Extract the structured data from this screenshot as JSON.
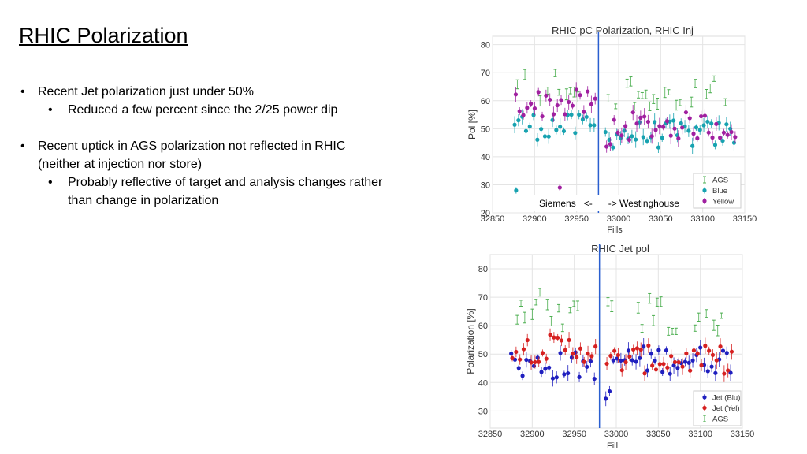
{
  "slide": {
    "title": "RHIC Polarization",
    "bullets": [
      {
        "text": "Recent Jet polarization just under 50%",
        "sub": [
          "Reduced a few percent since the 2/25 power dip"
        ]
      },
      {
        "text": "Recent uptick in AGS polarization not reflected in RHIC (neither at injection nor store)",
        "sub": [
          "Probably reflective of target and analysis changes rather than change in polarization"
        ]
      }
    ]
  },
  "chart_data": [
    {
      "type": "scatter",
      "title": "RHIC pC Polarization, RHIC Inj",
      "xlabel": "Fills",
      "ylabel": "Pol [%]",
      "xlim": [
        32850,
        33150
      ],
      "ylim": [
        20,
        83
      ],
      "xticks": [
        32850,
        32900,
        32950,
        33000,
        33050,
        33100,
        33150
      ],
      "yticks": [
        20,
        30,
        40,
        50,
        60,
        70,
        80
      ],
      "grid": true,
      "legend_position": "bottom-right",
      "vertical_line_x": 32976,
      "annotation": "Siemens   <-      -> Westinghouse",
      "series": [
        {
          "name": "AGS",
          "color": "#4caf50",
          "marker": "errorbar",
          "y_early": 64,
          "y_late": 62,
          "y_lo": 58,
          "y_hi": 76
        },
        {
          "name": "Blue",
          "color": "#17a2b0",
          "marker": "dot",
          "y_early": 51,
          "y_late": 48,
          "y_lo": 42,
          "y_hi": 55,
          "outlier": [
            32878,
            28
          ]
        },
        {
          "name": "Yellow",
          "color": "#a020a0",
          "marker": "dot",
          "y_early": 59,
          "y_late": 51,
          "y_lo": 36,
          "y_hi": 66,
          "outlier": [
            32930,
            29
          ]
        }
      ]
    },
    {
      "type": "scatter",
      "title": "RHIC Jet pol",
      "xlabel": "Fill",
      "ylabel": "Polarization [%]",
      "xlim": [
        32850,
        33150
      ],
      "ylim": [
        24,
        85
      ],
      "xticks": [
        32850,
        32900,
        32950,
        33000,
        33050,
        33100,
        33150
      ],
      "yticks": [
        30,
        40,
        50,
        60,
        70,
        80
      ],
      "grid": true,
      "legend_position": "bottom-right",
      "vertical_line_x": 32980,
      "series": [
        {
          "name": "Jet (Blu)",
          "color": "#1f1fbf",
          "marker": "dot",
          "y_early": 46,
          "y_late": 48,
          "y_lo": 26,
          "y_hi": 56
        },
        {
          "name": "Jet (Yel)",
          "color": "#d62020",
          "marker": "dot",
          "y_early": 52,
          "y_late": 48,
          "y_lo": 38,
          "y_hi": 61
        },
        {
          "name": "AGS",
          "color": "#4caf50",
          "marker": "errorbar",
          "y_early": 65,
          "y_late": 63,
          "y_lo": 58,
          "y_hi": 76
        }
      ]
    }
  ]
}
